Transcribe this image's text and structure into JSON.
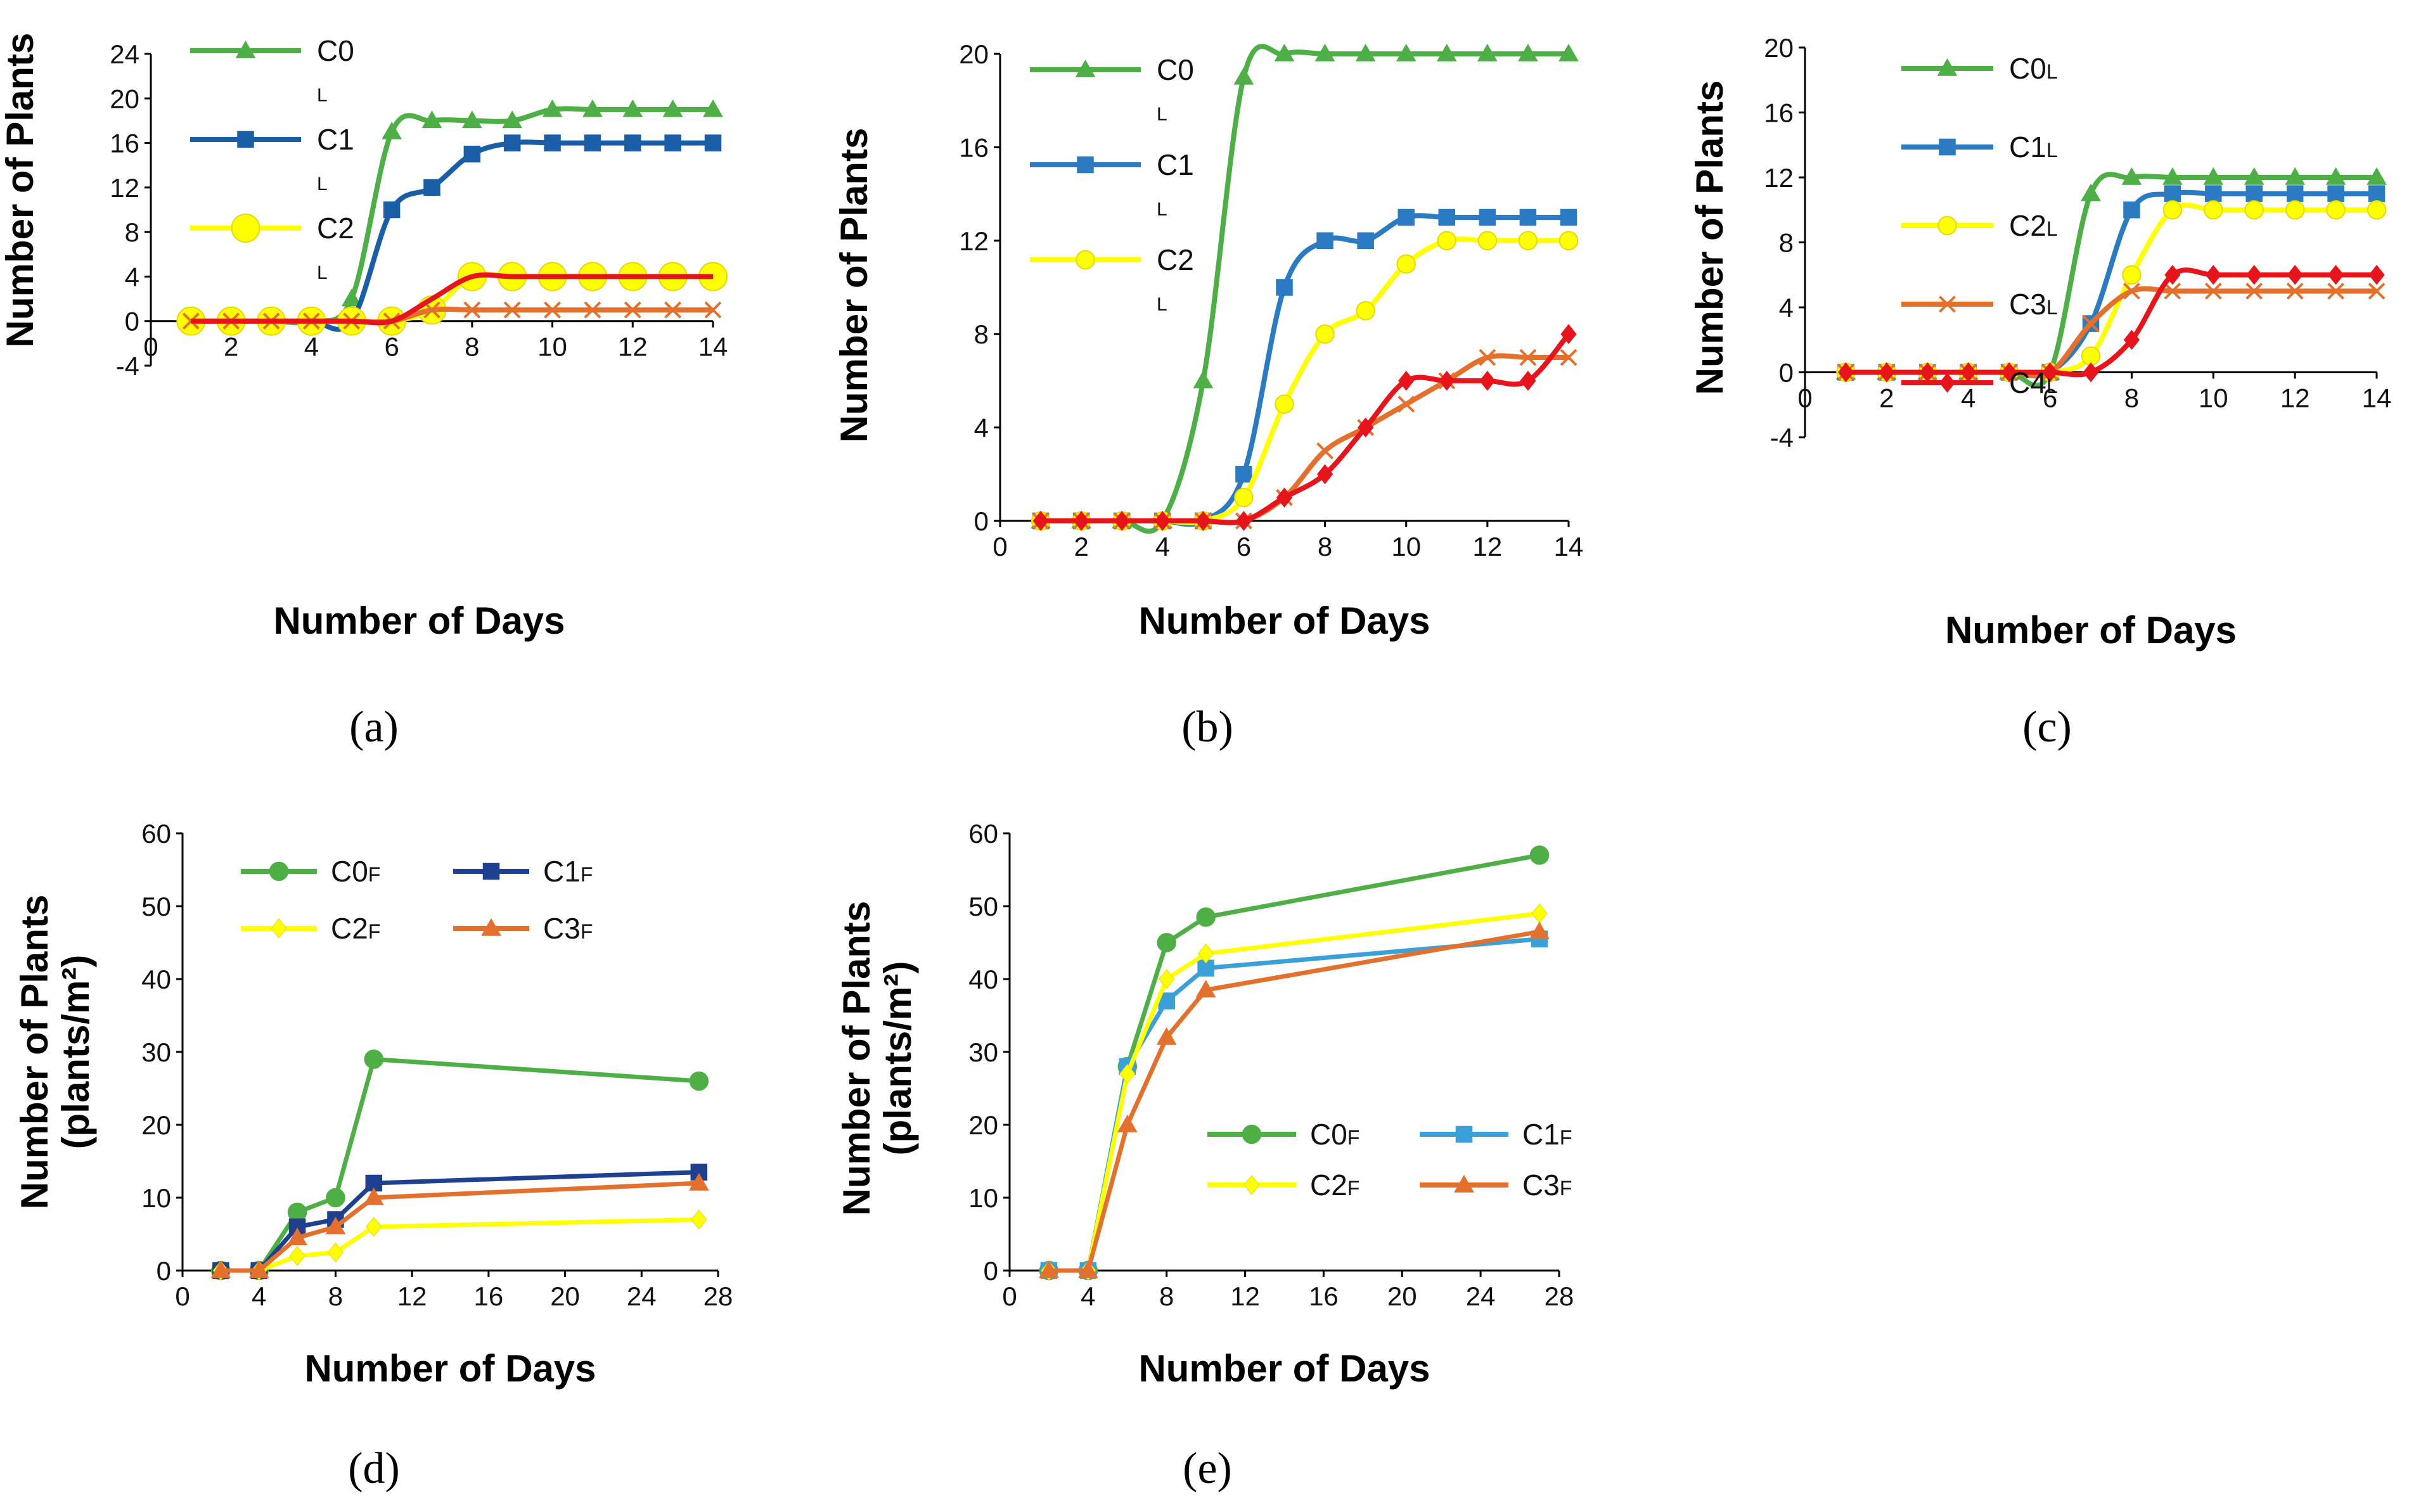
{
  "chart_data": [
    {
      "id": "a",
      "panel_label": "(a)",
      "type": "line",
      "xlabel": "Number of Days",
      "ylabel": "Number of Plants",
      "xlim": [
        0,
        14
      ],
      "ylim": [
        -4,
        24
      ],
      "xticks": [
        0,
        2,
        4,
        6,
        8,
        10,
        12,
        14
      ],
      "yticks": [
        -4,
        0,
        4,
        8,
        12,
        16,
        20,
        24
      ],
      "x": [
        1,
        2,
        3,
        4,
        5,
        6,
        7,
        8,
        9,
        10,
        11,
        12,
        13,
        14
      ],
      "legend_position": "top-left",
      "legend": [
        "C0",
        "C1",
        "C2"
      ],
      "legend_sub": "L",
      "series": [
        {
          "name": "C0",
          "color": "#4daf45",
          "marker": "triangle",
          "values": [
            0,
            0,
            0,
            0,
            2,
            17,
            18,
            18,
            18,
            19,
            19,
            19,
            19,
            19
          ]
        },
        {
          "name": "C1",
          "color": "#1b5ea8",
          "marker": "square",
          "values": [
            0,
            0,
            0,
            0,
            0,
            10,
            12,
            15,
            16,
            16,
            16,
            16,
            16,
            16
          ]
        },
        {
          "name": "C2",
          "color": "#ffff00",
          "marker": "circle-lg",
          "values": [
            0,
            0,
            0,
            0,
            0,
            0,
            1,
            4,
            4,
            4,
            4,
            4,
            4,
            4
          ]
        },
        {
          "name": "C3",
          "color": "#e3702d",
          "marker": "x",
          "values": [
            0,
            0,
            0,
            0,
            0,
            0,
            1,
            1,
            1,
            1,
            1,
            1,
            1,
            1
          ]
        },
        {
          "name": "C4",
          "color": "#e8141c",
          "marker": "none",
          "values": [
            0,
            0,
            0,
            0,
            0,
            0,
            2,
            4,
            4,
            4,
            4,
            4,
            4,
            4
          ]
        }
      ]
    },
    {
      "id": "b",
      "panel_label": "(b)",
      "type": "line",
      "xlabel": "Number of Days",
      "ylabel": "Number of Plants",
      "xlim": [
        0,
        14
      ],
      "ylim": [
        0,
        20
      ],
      "xticks": [
        0,
        2,
        4,
        6,
        8,
        10,
        12,
        14
      ],
      "yticks": [
        0,
        4,
        8,
        12,
        16,
        20
      ],
      "x": [
        1,
        2,
        3,
        4,
        5,
        6,
        7,
        8,
        9,
        10,
        11,
        12,
        13,
        14
      ],
      "legend_position": "top-left",
      "legend": [
        "C0",
        "C1",
        "C2"
      ],
      "legend_sub": "L",
      "series": [
        {
          "name": "C0",
          "color": "#4daf45",
          "marker": "triangle",
          "values": [
            0,
            0,
            0,
            0,
            6,
            19,
            20,
            20,
            20,
            20,
            20,
            20,
            20,
            20
          ]
        },
        {
          "name": "C1",
          "color": "#2a7bc1",
          "marker": "square",
          "values": [
            0,
            0,
            0,
            0,
            0,
            2,
            10,
            12,
            12,
            13,
            13,
            13,
            13,
            13
          ]
        },
        {
          "name": "C2",
          "color": "#ffff00",
          "marker": "circle",
          "values": [
            0,
            0,
            0,
            0,
            0,
            1,
            5,
            8,
            9,
            11,
            12,
            12,
            12,
            12
          ]
        },
        {
          "name": "C3",
          "color": "#e3702d",
          "marker": "x",
          "values": [
            0,
            0,
            0,
            0,
            0,
            0,
            1,
            3,
            4,
            5,
            6,
            7,
            7,
            7
          ]
        },
        {
          "name": "C4",
          "color": "#e8141c",
          "marker": "diamond",
          "values": [
            0,
            0,
            0,
            0,
            0,
            0,
            1,
            2,
            4,
            6,
            6,
            6,
            6,
            8
          ]
        }
      ]
    },
    {
      "id": "c",
      "panel_label": "(c)",
      "type": "line",
      "xlabel": "Number of Days",
      "ylabel": "Number of Plants",
      "xlim": [
        0,
        14
      ],
      "ylim": [
        -4,
        20
      ],
      "xticks": [
        0,
        2,
        4,
        6,
        8,
        10,
        12,
        14
      ],
      "yticks": [
        -4,
        0,
        4,
        8,
        12,
        16,
        20
      ],
      "x": [
        1,
        2,
        3,
        4,
        5,
        6,
        7,
        8,
        9,
        10,
        11,
        12,
        13,
        14
      ],
      "legend_position": "top-left",
      "legend": [
        "C0",
        "C1",
        "C2",
        "C3",
        "C4"
      ],
      "legend_sub": "L",
      "series": [
        {
          "name": "C0",
          "color": "#4daf45",
          "marker": "triangle",
          "values": [
            0,
            0,
            0,
            0,
            0,
            0,
            11,
            12,
            12,
            12,
            12,
            12,
            12,
            12
          ]
        },
        {
          "name": "C1",
          "color": "#2a7bc1",
          "marker": "square",
          "values": [
            0,
            0,
            0,
            0,
            0,
            0,
            3,
            10,
            11,
            11,
            11,
            11,
            11,
            11
          ]
        },
        {
          "name": "C2",
          "color": "#ffff00",
          "marker": "circle",
          "values": [
            0,
            0,
            0,
            0,
            0,
            0,
            1,
            6,
            10,
            10,
            10,
            10,
            10,
            10
          ]
        },
        {
          "name": "C3",
          "color": "#e3702d",
          "marker": "x",
          "values": [
            0,
            0,
            0,
            0,
            0,
            0,
            3,
            5,
            5,
            5,
            5,
            5,
            5,
            5
          ]
        },
        {
          "name": "C4",
          "color": "#e8141c",
          "marker": "diamond",
          "values": [
            0,
            0,
            0,
            0,
            0,
            0,
            0,
            2,
            6,
            6,
            6,
            6,
            6,
            6
          ]
        }
      ]
    },
    {
      "id": "d",
      "panel_label": "(d)",
      "type": "line",
      "xlabel": "Number of Days",
      "ylabel": "Number of Plants",
      "ylabel2": "(plants/m²)",
      "xlim": [
        0,
        28
      ],
      "ylim": [
        0,
        60
      ],
      "xticks": [
        0,
        4,
        8,
        12,
        16,
        20,
        24,
        28
      ],
      "yticks": [
        0,
        10,
        20,
        30,
        40,
        50,
        60
      ],
      "x": [
        2,
        4,
        6,
        8,
        10,
        27
      ],
      "legend_position": "top-center",
      "legend": [
        "C0",
        "C1",
        "C2",
        "C3"
      ],
      "legend_sub": "F",
      "series": [
        {
          "name": "C0",
          "color": "#4daf45",
          "marker": "circle",
          "values": [
            0,
            0,
            8,
            10,
            29,
            26
          ]
        },
        {
          "name": "C1",
          "color": "#1f3f8f",
          "marker": "square",
          "values": [
            0,
            0,
            6,
            7,
            12,
            13.5
          ]
        },
        {
          "name": "C2",
          "color": "#ffff00",
          "marker": "diamond",
          "values": [
            0,
            0,
            2,
            2.5,
            6,
            7
          ]
        },
        {
          "name": "C3",
          "color": "#e3702d",
          "marker": "triangle",
          "values": [
            0,
            0,
            4.5,
            6,
            10,
            12
          ]
        }
      ]
    },
    {
      "id": "e",
      "panel_label": "(e)",
      "type": "line",
      "xlabel": "Number of Days",
      "ylabel": "Number of Plants",
      "ylabel2": "(plants/m²)",
      "xlim": [
        0,
        28
      ],
      "ylim": [
        0,
        60
      ],
      "xticks": [
        0,
        4,
        8,
        12,
        16,
        20,
        24,
        28
      ],
      "yticks": [
        0,
        10,
        20,
        30,
        40,
        50,
        60
      ],
      "x": [
        2,
        4,
        6,
        8,
        10,
        27
      ],
      "legend_position": "bottom-right",
      "legend": [
        "C0",
        "C1",
        "C2",
        "C3"
      ],
      "legend_sub": "F",
      "series": [
        {
          "name": "C0",
          "color": "#4daf45",
          "marker": "circle",
          "values": [
            0,
            0,
            28,
            45,
            48.5,
            57
          ]
        },
        {
          "name": "C1",
          "color": "#3ba0d8",
          "marker": "square",
          "values": [
            0,
            0,
            28,
            37,
            41.5,
            45.5
          ]
        },
        {
          "name": "C2",
          "color": "#ffff00",
          "marker": "diamond",
          "values": [
            0,
            0,
            27,
            40,
            43.5,
            49
          ]
        },
        {
          "name": "C3",
          "color": "#e3702d",
          "marker": "triangle",
          "values": [
            0,
            0,
            20,
            32,
            38.5,
            46.5
          ]
        }
      ]
    }
  ]
}
